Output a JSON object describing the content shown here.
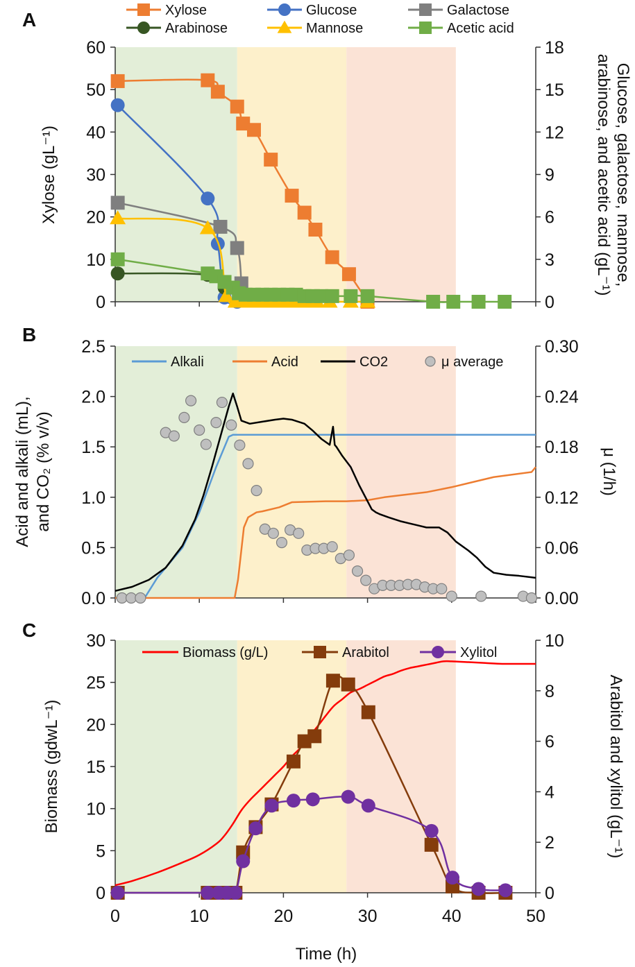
{
  "chart_data": [
    {
      "panel": "A",
      "type": "line",
      "xlim": [
        0,
        50
      ],
      "ylim_left": [
        0,
        60
      ],
      "ylim_right": [
        0,
        18
      ],
      "left_ticks": [
        "0",
        "10",
        "20",
        "30",
        "40",
        "50",
        "60"
      ],
      "right_ticks": [
        "0",
        "3",
        "6",
        "9",
        "12",
        "15",
        "18"
      ],
      "ylabel": "Xylose (gL⁻¹)",
      "ylabel_right": "Glucose, galactose, mannose, arabinose, and acetic acid (gL⁻¹)",
      "ylabel_right_line1": "Glucose, galactose, mannose,",
      "ylabel_right_line2": "arabinose, and acetic acid (gL⁻¹)",
      "phases": [
        {
          "from": 0,
          "to": 14.5,
          "color": "#e3eed8"
        },
        {
          "from": 14.5,
          "to": 27.5,
          "color": "#fdf0cb"
        },
        {
          "from": 27.5,
          "to": 40.5,
          "color": "#fbe3d6"
        }
      ],
      "series": [
        {
          "name": "Xylose",
          "axis": "left",
          "color": "#ed7d31",
          "marker": "square",
          "x": [
            0.3,
            11,
            12.2,
            14.5,
            15.2,
            16.5,
            18.5,
            21,
            22.5,
            23.8,
            25.8,
            27.8,
            30
          ],
          "y": [
            52,
            52.2,
            49.5,
            46,
            42,
            40.5,
            33.5,
            25,
            21,
            17,
            10.5,
            6.5,
            0
          ]
        },
        {
          "name": "Glucose",
          "axis": "left_right",
          "color": "#4472c4",
          "marker": "circle",
          "x": [
            0.3,
            11,
            12.2,
            13,
            14.5
          ],
          "y": [
            13.9,
            7.3,
            4.1,
            0.3,
            0
          ]
        },
        {
          "name": "Galactose",
          "axis": "right",
          "color": "#7f7f7f",
          "marker": "square",
          "x": [
            0.3,
            12.5,
            14.5,
            15
          ],
          "y": [
            7.0,
            5.3,
            3.8,
            1.3
          ]
        },
        {
          "name": "Arabinose",
          "axis": "right",
          "color": "#375623",
          "marker": "circle",
          "x": [
            0.3,
            11,
            13
          ],
          "y": [
            2.0,
            1.9,
            1.0
          ]
        },
        {
          "name": "Mannose",
          "axis": "right",
          "color": "#ffc000",
          "marker": "triangle",
          "x": [
            0.3,
            11,
            13.2,
            14.3,
            15,
            16,
            17,
            18,
            19,
            20,
            21,
            22,
            23,
            24,
            25.5,
            28,
            30
          ],
          "y": [
            5.9,
            5.2,
            0.4,
            0,
            0,
            0,
            0,
            0,
            0,
            0,
            0,
            0,
            0,
            0,
            0,
            0,
            0
          ]
        },
        {
          "name": "Acetic acid",
          "axis": "right",
          "color": "#70ad47",
          "marker": "square",
          "x": [
            0.3,
            11,
            12,
            13,
            14,
            14.7,
            15.5,
            16.5,
            17.5,
            18.5,
            19.5,
            20.5,
            21.5,
            22.5,
            23.5,
            24.5,
            25.8,
            28,
            30,
            37.8,
            40.2,
            43.2,
            46.3
          ],
          "y": [
            3.0,
            2.0,
            1.8,
            1.4,
            1.0,
            0.6,
            0.5,
            0.5,
            0.5,
            0.5,
            0.5,
            0.5,
            0.5,
            0.4,
            0.4,
            0.4,
            0.4,
            0.4,
            0.4,
            0,
            0,
            0,
            0
          ]
        }
      ]
    },
    {
      "panel": "B",
      "type": "line",
      "xlim": [
        0,
        50
      ],
      "ylim_left": [
        0,
        2.5
      ],
      "ylim_right": [
        0,
        0.3
      ],
      "left_ticks": [
        "0.0",
        "0.5",
        "1.0",
        "1.5",
        "2.0",
        "2.5"
      ],
      "right_ticks": [
        "0.00",
        "0.06",
        "0.12",
        "0.18",
        "0.24",
        "0.30"
      ],
      "ylabel_line1": "Acid and alkali (mL),",
      "ylabel_line2": "and CO₂ (% v/v)",
      "ylabel_right": "μ (1/h)",
      "series": [
        {
          "name": "Alkali",
          "axis": "left",
          "color": "#5b9bd5",
          "x": [
            0,
            3.5,
            5,
            8,
            10,
            12,
            13.5,
            14,
            14.3,
            50
          ],
          "y": [
            0,
            0,
            0.2,
            0.5,
            0.85,
            1.3,
            1.6,
            1.62,
            1.62,
            1.62
          ]
        },
        {
          "name": "Acid",
          "axis": "left",
          "color": "#ed7d31",
          "x": [
            0,
            14.2,
            14.6,
            15.3,
            15.8,
            16.8,
            17.5,
            19.5,
            21,
            25,
            27.5,
            30,
            32,
            37,
            40,
            42.5,
            45,
            49.5,
            50
          ],
          "y": [
            0,
            0,
            0.18,
            0.7,
            0.8,
            0.85,
            0.86,
            0.9,
            0.95,
            0.96,
            0.96,
            0.97,
            1.0,
            1.05,
            1.1,
            1.15,
            1.2,
            1.25,
            1.3
          ]
        },
        {
          "name": "CO2",
          "axis": "left",
          "color": "#000000",
          "x": [
            0,
            2,
            4,
            6,
            8,
            9.5,
            10.5,
            11.5,
            12.5,
            13.5,
            14,
            14.5,
            15,
            16,
            17.5,
            19,
            20,
            21,
            22.5,
            23.5,
            24.5,
            25.5,
            25.9,
            26.1,
            26.3,
            27,
            28,
            29,
            30,
            30.5,
            31,
            31.5,
            32.5,
            34,
            35,
            36,
            37,
            38.5,
            39.5,
            40.5,
            42,
            43,
            44,
            45,
            46.5,
            48,
            50
          ],
          "y": [
            0.07,
            0.11,
            0.18,
            0.3,
            0.52,
            0.78,
            1.02,
            1.3,
            1.6,
            1.9,
            2.03,
            1.9,
            1.76,
            1.73,
            1.75,
            1.77,
            1.78,
            1.77,
            1.73,
            1.66,
            1.58,
            1.52,
            1.7,
            1.52,
            1.5,
            1.41,
            1.3,
            1.12,
            0.96,
            0.88,
            0.85,
            0.83,
            0.8,
            0.76,
            0.74,
            0.72,
            0.7,
            0.7,
            0.65,
            0.56,
            0.47,
            0.4,
            0.31,
            0.25,
            0.23,
            0.22,
            0.2
          ]
        },
        {
          "name": "μ average",
          "axis": "right",
          "color": "#bfbfbf",
          "marker": "circle",
          "mode": "markers",
          "x": [
            0.8,
            1.9,
            3,
            6,
            7,
            8.2,
            9,
            10,
            10.8,
            12,
            12.7,
            13.8,
            14.8,
            15.8,
            16.8,
            17.8,
            18.8,
            19.8,
            20.8,
            21.8,
            22.8,
            23.8,
            24.8,
            25.8,
            26.8,
            27.8,
            28.8,
            29.8,
            30.8,
            31.8,
            32.8,
            33.8,
            34.8,
            35.8,
            36.8,
            37.8,
            38.8,
            40,
            43.5,
            48.5,
            49.5
          ],
          "y": [
            0.0,
            0.0,
            0.0,
            0.197,
            0.193,
            0.215,
            0.235,
            0.2,
            0.183,
            0.209,
            0.233,
            0.206,
            0.182,
            0.16,
            0.128,
            0.082,
            0.077,
            0.066,
            0.081,
            0.077,
            0.057,
            0.059,
            0.059,
            0.061,
            0.047,
            0.051,
            0.032,
            0.021,
            0.011,
            0.015,
            0.015,
            0.015,
            0.016,
            0.016,
            0.013,
            0.011,
            0.011,
            0.002,
            0.002,
            0.002,
            0.0
          ]
        }
      ]
    },
    {
      "panel": "C",
      "type": "line",
      "xlim": [
        0,
        50
      ],
      "ylim_left": [
        0,
        30
      ],
      "ylim_right": [
        0,
        10
      ],
      "left_ticks": [
        "0",
        "5",
        "10",
        "15",
        "20",
        "25",
        "30"
      ],
      "right_ticks": [
        "0",
        "2",
        "4",
        "6",
        "8",
        "10"
      ],
      "x_ticks": [
        "0",
        "10",
        "20",
        "30",
        "40",
        "50"
      ],
      "xlabel": "Time (h)",
      "ylabel": "Biomass (gdwL⁻¹)",
      "ylabel_right": "Arabitol and xylitol (gL⁻¹)",
      "series": [
        {
          "name": "Biomass (g/L)",
          "axis": "left",
          "color": "#ff0000",
          "x": [
            0,
            2,
            5,
            8,
            10,
            12,
            13,
            14,
            15,
            16,
            17,
            18,
            19,
            20,
            21,
            22,
            23,
            24,
            25,
            26,
            27,
            28,
            29,
            30,
            31,
            32,
            33,
            34,
            35,
            36,
            37,
            38,
            39,
            40,
            42,
            44,
            46,
            48,
            50
          ],
          "y": [
            0.9,
            1.4,
            2.4,
            3.6,
            4.5,
            5.8,
            6.8,
            8.2,
            9.8,
            11.0,
            12.0,
            13.0,
            14.0,
            15.0,
            16.2,
            17.2,
            18.5,
            19.7,
            21.0,
            22.2,
            23.0,
            23.8,
            24.2,
            24.7,
            25.2,
            25.7,
            26.0,
            26.4,
            26.7,
            26.9,
            27.1,
            27.3,
            27.5,
            27.5,
            27.4,
            27.3,
            27.2,
            27.2,
            27.2
          ]
        },
        {
          "name": "Arabitol",
          "axis": "right",
          "color": "#843c0c",
          "marker": "square",
          "x": [
            0.3,
            11,
            12.3,
            13.3,
            14.3,
            15.2,
            16.7,
            18.6,
            21.2,
            22.5,
            23.7,
            25.9,
            27.7,
            30.1,
            37.6,
            40.1,
            43.2,
            46.4
          ],
          "y": [
            0,
            0,
            0,
            0,
            0,
            1.6,
            2.6,
            3.5,
            5.2,
            6.0,
            6.2,
            8.4,
            8.25,
            7.15,
            1.9,
            0.25,
            0,
            0
          ]
        },
        {
          "name": "Xylitol",
          "axis": "right",
          "color": "#7030a0",
          "marker": "circle",
          "x": [
            0.3,
            11,
            12.3,
            13.3,
            14.3,
            15.2,
            16.7,
            18.6,
            21.2,
            23.5,
            27.7,
            30.1,
            37.6,
            40.1,
            43.2,
            46.4
          ],
          "y": [
            0,
            0,
            0,
            0,
            0,
            1.25,
            2.55,
            3.45,
            3.65,
            3.7,
            3.8,
            3.45,
            2.45,
            0.6,
            0.15,
            0.1
          ]
        }
      ]
    }
  ]
}
